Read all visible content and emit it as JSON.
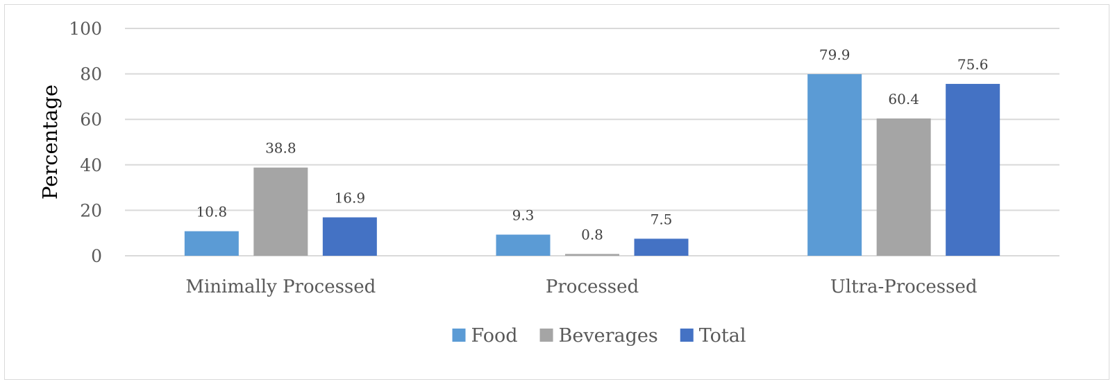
{
  "chart_data": {
    "type": "bar",
    "title": "",
    "xlabel": "",
    "ylabel": "Percentage",
    "ylim": [
      0,
      100
    ],
    "yticks": [
      0,
      20,
      40,
      60,
      80,
      100
    ],
    "grid": true,
    "legend_position": "bottom",
    "categories": [
      "Minimally Processed",
      "Processed",
      "Ultra-Processed"
    ],
    "series": [
      {
        "name": "Food",
        "color": "#5b9bd5",
        "values": [
          10.8,
          9.3,
          79.9
        ],
        "labels": [
          "10.8",
          "9.3",
          "79.9"
        ]
      },
      {
        "name": "Beverages",
        "color": "#a5a5a5",
        "values": [
          38.8,
          0.8,
          60.4
        ],
        "labels": [
          "38.8",
          "0.8",
          "60.4"
        ]
      },
      {
        "name": "Total",
        "color": "#4472c4",
        "values": [
          16.9,
          7.5,
          75.6
        ],
        "labels": [
          "16.9",
          "7.5",
          "75.6"
        ]
      }
    ]
  }
}
